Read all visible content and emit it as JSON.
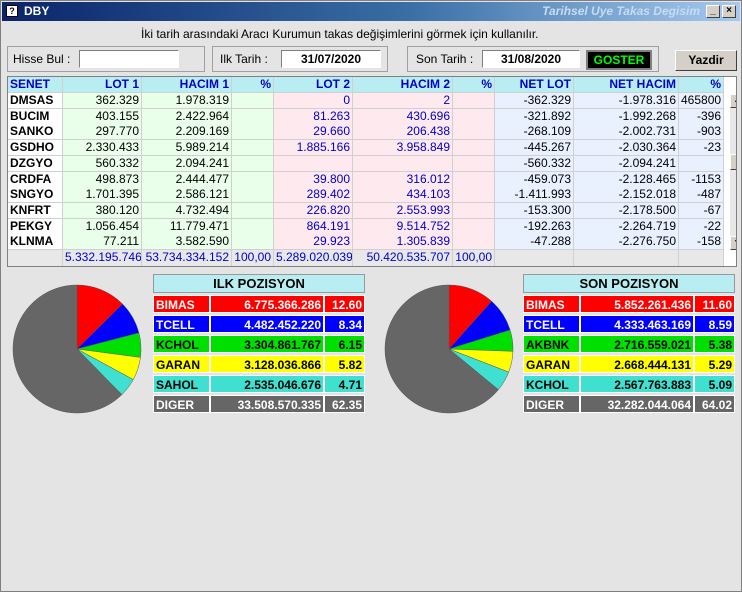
{
  "window": {
    "app_title": "DBY",
    "title": "Tarihsel Uye Takas Degisim"
  },
  "hint": "İki tarih arasındaki  Aracı Kurumun takas değişimlerini görmek için kullanılır.",
  "toolbar": {
    "hisse_label": "Hisse Bul :",
    "hisse_value": "",
    "ilk_tarih_label": "Ilk Tarih :",
    "ilk_tarih_value": "31/07/2020",
    "son_tarih_label": "Son Tarih :",
    "son_tarih_value": "31/08/2020",
    "goster_label": "GOSTER",
    "yazdir_label": "Yazdir"
  },
  "grid": {
    "headers": [
      "SENET",
      "LOT 1",
      "HACIM 1",
      "%",
      "LOT 2",
      "HACIM 2",
      "%",
      "NET LOT",
      "NET HACIM",
      "%"
    ],
    "rows": [
      [
        "DMSAS",
        "362.329",
        "1.978.319",
        "",
        "0",
        "2",
        "",
        "-362.329",
        "-1.978.316",
        "465800"
      ],
      [
        "BUCIM",
        "403.155",
        "2.422.964",
        "",
        "81.263",
        "430.696",
        "",
        "-321.892",
        "-1.992.268",
        "-396"
      ],
      [
        "SANKO",
        "297.770",
        "2.209.169",
        "",
        "29.660",
        "206.438",
        "",
        "-268.109",
        "-2.002.731",
        "-903"
      ],
      [
        "GSDHO",
        "2.330.433",
        "5.989.214",
        "",
        "1.885.166",
        "3.958.849",
        "",
        "-445.267",
        "-2.030.364",
        "-23"
      ],
      [
        "DZGYO",
        "560.332",
        "2.094.241",
        "",
        "",
        "",
        "",
        "-560.332",
        "-2.094.241",
        ""
      ],
      [
        "CRDFA",
        "498.873",
        "2.444.477",
        "",
        "39.800",
        "316.012",
        "",
        "-459.073",
        "-2.128.465",
        "-1153"
      ],
      [
        "SNGYO",
        "1.701.395",
        "2.586.121",
        "",
        "289.402",
        "434.103",
        "",
        "-1.411.993",
        "-2.152.018",
        "-487"
      ],
      [
        "KNFRT",
        "380.120",
        "4.732.494",
        "",
        "226.820",
        "2.553.993",
        "",
        "-153.300",
        "-2.178.500",
        "-67"
      ],
      [
        "PEKGY",
        "1.056.454",
        "11.779.471",
        "",
        "864.191",
        "9.514.752",
        "",
        "-192.263",
        "-2.264.719",
        "-22"
      ],
      [
        "KLNMA",
        "77.211",
        "3.582.590",
        "",
        "29.923",
        "1.305.839",
        "",
        "-47.288",
        "-2.276.750",
        "-158"
      ]
    ],
    "totals": [
      "",
      "5.332.195.746",
      "53.734.334.152",
      "100,00",
      "5.289.020.039",
      "50.420.535.707",
      "100,00",
      "",
      "",
      ""
    ]
  },
  "ilk": {
    "title": "ILK POZISYON",
    "rows": [
      {
        "name": "BIMAS",
        "value": "6.775.366.286",
        "pct": "12.60",
        "pct_num": 12.6,
        "bg": "#ff0000",
        "fg": "#ffffff"
      },
      {
        "name": "TCELL",
        "value": "4.482.452.220",
        "pct": "8.34",
        "pct_num": 8.34,
        "bg": "#0000ff",
        "fg": "#ffffff"
      },
      {
        "name": "KCHOL",
        "value": "3.304.861.767",
        "pct": "6.15",
        "pct_num": 6.15,
        "bg": "#00e000",
        "fg": "#000000"
      },
      {
        "name": "GARAN",
        "value": "3.128.036.866",
        "pct": "5.82",
        "pct_num": 5.82,
        "bg": "#ffff00",
        "fg": "#000000"
      },
      {
        "name": "SAHOL",
        "value": "2.535.046.676",
        "pct": "4.71",
        "pct_num": 4.71,
        "bg": "#40e0d0",
        "fg": "#000000"
      },
      {
        "name": "DIGER",
        "value": "33.508.570.335",
        "pct": "62.35",
        "pct_num": 62.35,
        "bg": "#666666",
        "fg": "#ffffff"
      }
    ]
  },
  "son": {
    "title": "SON POZISYON",
    "rows": [
      {
        "name": "BIMAS",
        "value": "5.852.261.436",
        "pct": "11.60",
        "pct_num": 11.6,
        "bg": "#ff0000",
        "fg": "#ffffff"
      },
      {
        "name": "TCELL",
        "value": "4.333.463.169",
        "pct": "8.59",
        "pct_num": 8.59,
        "bg": "#0000ff",
        "fg": "#ffffff"
      },
      {
        "name": "AKBNK",
        "value": "2.716.559.021",
        "pct": "5.38",
        "pct_num": 5.38,
        "bg": "#00e000",
        "fg": "#000000"
      },
      {
        "name": "GARAN",
        "value": "2.668.444.131",
        "pct": "5.29",
        "pct_num": 5.29,
        "bg": "#ffff00",
        "fg": "#000000"
      },
      {
        "name": "KCHOL",
        "value": "2.567.763.883",
        "pct": "5.09",
        "pct_num": 5.09,
        "bg": "#40e0d0",
        "fg": "#000000"
      },
      {
        "name": "DIGER",
        "value": "32.282.044.064",
        "pct": "64.02",
        "pct_num": 64.02,
        "bg": "#666666",
        "fg": "#ffffff"
      }
    ]
  }
}
